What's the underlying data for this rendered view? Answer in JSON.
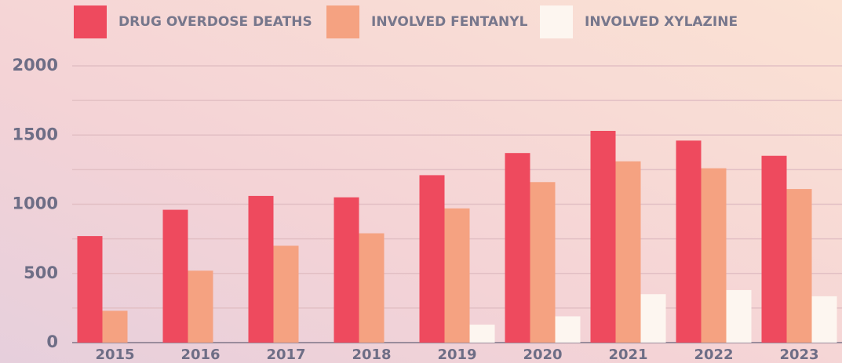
{
  "chart_data": {
    "type": "bar",
    "categories": [
      "2015",
      "2016",
      "2017",
      "2018",
      "2019",
      "2020",
      "2021",
      "2022",
      "2023"
    ],
    "series": [
      {
        "name": "DRUG OVERDOSE DEATHS",
        "color": "#ee4a5e",
        "values": [
          770,
          960,
          1060,
          1050,
          1210,
          1370,
          1530,
          1460,
          1350
        ]
      },
      {
        "name": "INVOLVED FENTANYL",
        "color": "#f5a281",
        "values": [
          230,
          520,
          700,
          790,
          970,
          1160,
          1310,
          1260,
          1110
        ]
      },
      {
        "name": "INVOLVED XYLAZINE",
        "color": "#fdf6f0",
        "values": [
          null,
          null,
          null,
          null,
          130,
          190,
          350,
          380,
          335
        ]
      }
    ],
    "ylim": [
      0,
      2000
    ],
    "yticks": [
      0,
      500,
      1000,
      1500,
      2000
    ],
    "minor_yticks": [
      250,
      750,
      1250,
      1750
    ],
    "grid": true
  }
}
